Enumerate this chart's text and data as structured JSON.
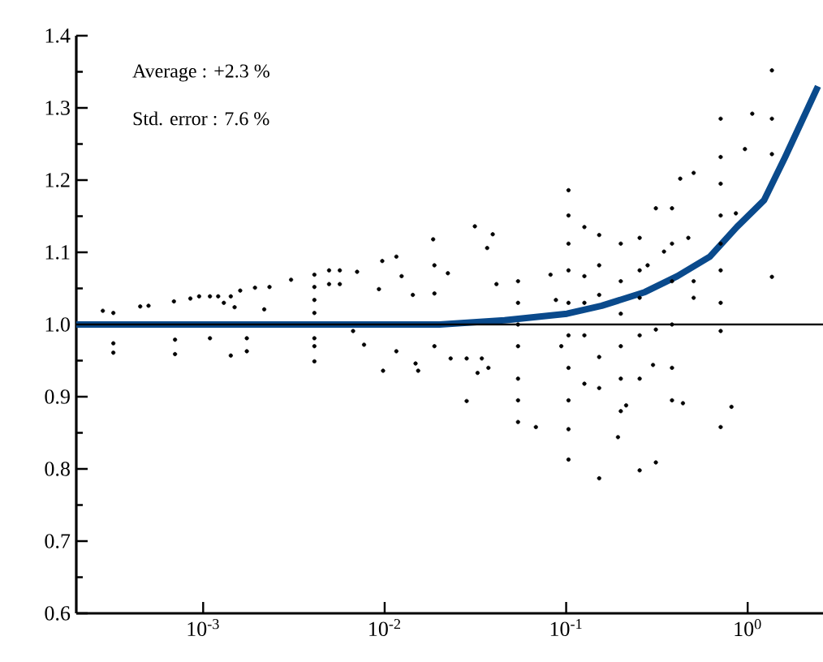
{
  "chart_data": {
    "type": "scatter",
    "xlim": [
      0.0002,
      2.6
    ],
    "ylim": [
      0.6,
      1.4
    ],
    "log": "x",
    "marker": "circle",
    "xticks": [
      {
        "value": 0.001,
        "label": "10$^{-3}$"
      },
      {
        "value": 0.01,
        "label": "10$^{-2}$"
      },
      {
        "value": 0.1,
        "label": "10$^{-1}$"
      },
      {
        "value": 1,
        "label": "10$^{0}$"
      }
    ],
    "yticks": [
      0.6,
      0.7,
      0.8,
      0.9,
      {
        "value": 1.0,
        "label": "1.0"
      },
      1.1,
      1.2,
      1.3,
      1.4
    ],
    "annotations": [
      "Average    : +2.3 %",
      "Std. error  :   7.6 %"
    ],
    "ref_lines": [
      {
        "axis": "y",
        "value": 1.0,
        "color": "#000000"
      }
    ],
    "series": [
      {
        "color": "#000000",
        "x": [
          0.00028,
          0.00032,
          0.00032,
          0.00032,
          0.00045,
          0.0005,
          0.00069,
          0.0007,
          0.0007,
          0.00085,
          0.00095,
          0.00109,
          0.00109,
          0.00121,
          0.0013,
          0.00142,
          0.00142,
          0.00149,
          0.0016,
          0.00174,
          0.00174,
          0.00193,
          0.00217,
          0.00232,
          0.00305,
          0.0041,
          0.0041,
          0.0041,
          0.0041,
          0.0041,
          0.0041,
          0.0041,
          0.00494,
          0.00494,
          0.00566,
          0.00566,
          0.00705,
          0.0067,
          0.0077,
          0.0093,
          0.0097,
          0.0098,
          0.0116,
          0.0116,
          0.0124,
          0.0143,
          0.0148,
          0.0153,
          0.0185,
          0.0188,
          0.0188,
          0.0188,
          0.0223,
          0.0231,
          0.0283,
          0.0283,
          0.0314,
          0.0325,
          0.0343,
          0.0367,
          0.0373,
          0.0394,
          0.0413,
          0.0543,
          0.0543,
          0.0543,
          0.0543,
          0.0543,
          0.0543,
          0.0543,
          0.0681,
          0.082,
          0.0878,
          0.094,
          0.103,
          0.103,
          0.103,
          0.103,
          0.103,
          0.103,
          0.103,
          0.103,
          0.103,
          0.103,
          0.126,
          0.126,
          0.126,
          0.126,
          0.126,
          0.152,
          0.152,
          0.152,
          0.152,
          0.152,
          0.152,
          0.2,
          0.2,
          0.2,
          0.2,
          0.2,
          0.2,
          0.193,
          0.214,
          0.254,
          0.254,
          0.254,
          0.254,
          0.254,
          0.254,
          0.281,
          0.312,
          0.312,
          0.312,
          0.301,
          0.346,
          0.383,
          0.383,
          0.383,
          0.383,
          0.383,
          0.383,
          0.425,
          0.44,
          0.471,
          0.504,
          0.504,
          0.504,
          0.71,
          0.71,
          0.71,
          0.71,
          0.71,
          0.71,
          0.71,
          0.71,
          0.71,
          0.814,
          0.861,
          0.966,
          1.06,
          1.36,
          1.36,
          1.36,
          1.36
        ],
        "values": [
          1.019,
          1.016,
          0.974,
          0.961,
          1.025,
          1.026,
          1.032,
          0.979,
          0.959,
          1.036,
          1.039,
          1.039,
          0.981,
          1.039,
          1.03,
          1.039,
          0.957,
          1.024,
          1.047,
          0.981,
          0.963,
          1.051,
          1.021,
          1.052,
          1.062,
          1.069,
          1.052,
          1.034,
          1.016,
          0.981,
          0.97,
          0.949,
          1.075,
          1.056,
          1.075,
          1.056,
          1.073,
          0.991,
          0.972,
          1.049,
          1.088,
          0.936,
          1.094,
          0.963,
          1.067,
          1.041,
          0.946,
          0.936,
          1.118,
          1.082,
          1.043,
          0.97,
          1.071,
          0.953,
          0.953,
          0.894,
          1.136,
          0.933,
          0.953,
          1.106,
          0.94,
          1.125,
          1.056,
          1.06,
          1.03,
          1.0,
          0.97,
          0.925,
          0.895,
          0.865,
          0.858,
          1.069,
          1.034,
          0.97,
          1.186,
          1.151,
          1.112,
          1.075,
          1.03,
          0.985,
          0.94,
          0.895,
          0.855,
          0.813,
          1.135,
          1.067,
          1.03,
          0.985,
          0.918,
          1.124,
          1.082,
          1.041,
          0.955,
          0.912,
          0.787,
          1.112,
          1.06,
          1.015,
          0.97,
          0.925,
          0.88,
          0.844,
          0.888,
          1.12,
          1.075,
          1.037,
          0.985,
          0.925,
          0.798,
          1.082,
          1.161,
          0.809,
          0.993,
          0.944,
          1.101,
          1.161,
          1.112,
          1.06,
          1.0,
          0.94,
          0.895,
          1.202,
          0.891,
          1.12,
          1.21,
          1.06,
          1.037,
          1.285,
          1.232,
          1.195,
          1.151,
          1.112,
          1.075,
          1.03,
          0.991,
          0.858,
          0.886,
          1.154,
          1.243,
          1.292,
          1.352,
          1.285,
          1.236,
          1.066
        ]
      },
      {
        "type": "line",
        "color": "#0a4a8c",
        "marker": "none",
        "x": [
          0.0002,
          0.005,
          0.0201,
          0.0458,
          0.101,
          0.157,
          0.272,
          0.41,
          0.619,
          0.871,
          1.23,
          1.61,
          2.44
        ],
        "values": [
          1.0,
          1.0,
          1.0,
          1.006,
          1.015,
          1.026,
          1.045,
          1.067,
          1.094,
          1.135,
          1.172,
          1.232,
          1.33
        ]
      }
    ]
  }
}
